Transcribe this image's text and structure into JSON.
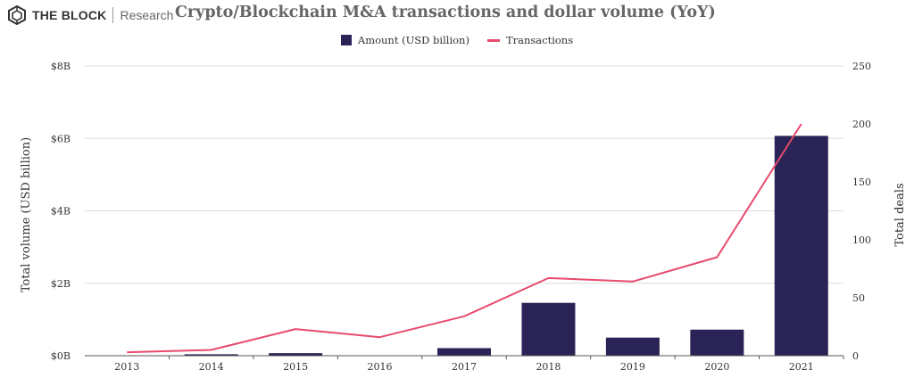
{
  "header": {
    "brand": "THE BLOCK",
    "section": "Research",
    "title": "Crypto/Blockchain M&A transactions and dollar volume (YoY)"
  },
  "chart_data": {
    "type": "bar",
    "categories": [
      "2013",
      "2014",
      "2015",
      "2016",
      "2017",
      "2018",
      "2019",
      "2020",
      "2021"
    ],
    "series": [
      {
        "name": "Amount (USD billion)",
        "type": "bar",
        "axis": "left",
        "color": "#2a2355",
        "values": [
          0.0,
          0.04,
          0.07,
          0.0,
          0.21,
          1.46,
          0.5,
          0.72,
          6.07
        ]
      },
      {
        "name": "Transactions",
        "type": "line",
        "axis": "right",
        "color": "#e84a6d",
        "values": [
          3,
          5,
          23,
          16,
          34,
          67,
          64,
          85,
          200
        ]
      }
    ],
    "y_left": {
      "label": "Total volume (USD billion)",
      "range": [
        0,
        8
      ],
      "ticks": [
        0,
        2,
        4,
        6,
        8
      ],
      "tick_labels": [
        "$0B",
        "$2B",
        "$4B",
        "$6B",
        "$8B"
      ]
    },
    "y_right": {
      "label": "Total deals",
      "range": [
        0,
        250
      ],
      "ticks": [
        0,
        50,
        100,
        150,
        200,
        250
      ],
      "tick_labels": [
        "0",
        "50",
        "100",
        "150",
        "200",
        "250"
      ]
    },
    "grid": true,
    "legend_position": "top-center"
  }
}
